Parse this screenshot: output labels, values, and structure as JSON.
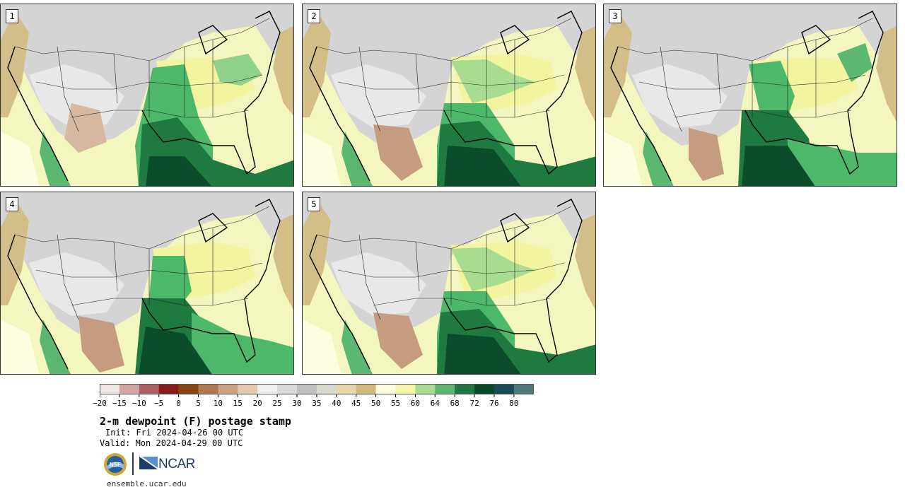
{
  "panels": [
    {
      "label": "1"
    },
    {
      "label": "2"
    },
    {
      "label": "3"
    },
    {
      "label": "4"
    },
    {
      "label": "5"
    }
  ],
  "legend": {
    "ticks": [
      "-20",
      "-15",
      "-10",
      "-5",
      "0",
      "5",
      "10",
      "15",
      "20",
      "25",
      "30",
      "35",
      "40",
      "45",
      "50",
      "55",
      "60",
      "64",
      "68",
      "72",
      "76",
      "80"
    ],
    "colors": [
      "#f2e6e6",
      "#d4a3a3",
      "#b06060",
      "#8b1a1a",
      "#8b4513",
      "#b07850",
      "#c9a080",
      "#e3c8b0",
      "#efefef",
      "#d9d9d9",
      "#bfbfbf",
      "#d8d8cc",
      "#e6d7a8",
      "#d4b878",
      "#fdfde0",
      "#f4f6a8",
      "#a8dc90",
      "#5cb870",
      "#1e7840",
      "#0a4a28",
      "#1a4a5a",
      "#4f7a7a"
    ]
  },
  "title": "2-m dewpoint (F) postage stamp",
  "init": "Init: Fri 2024-04-26 00 UTC",
  "valid": "Valid: Mon 2024-04-29 00 UTC",
  "logos": {
    "nsf": "NSF",
    "ncar": "NCAR"
  },
  "url": "ensemble.ucar.edu"
}
